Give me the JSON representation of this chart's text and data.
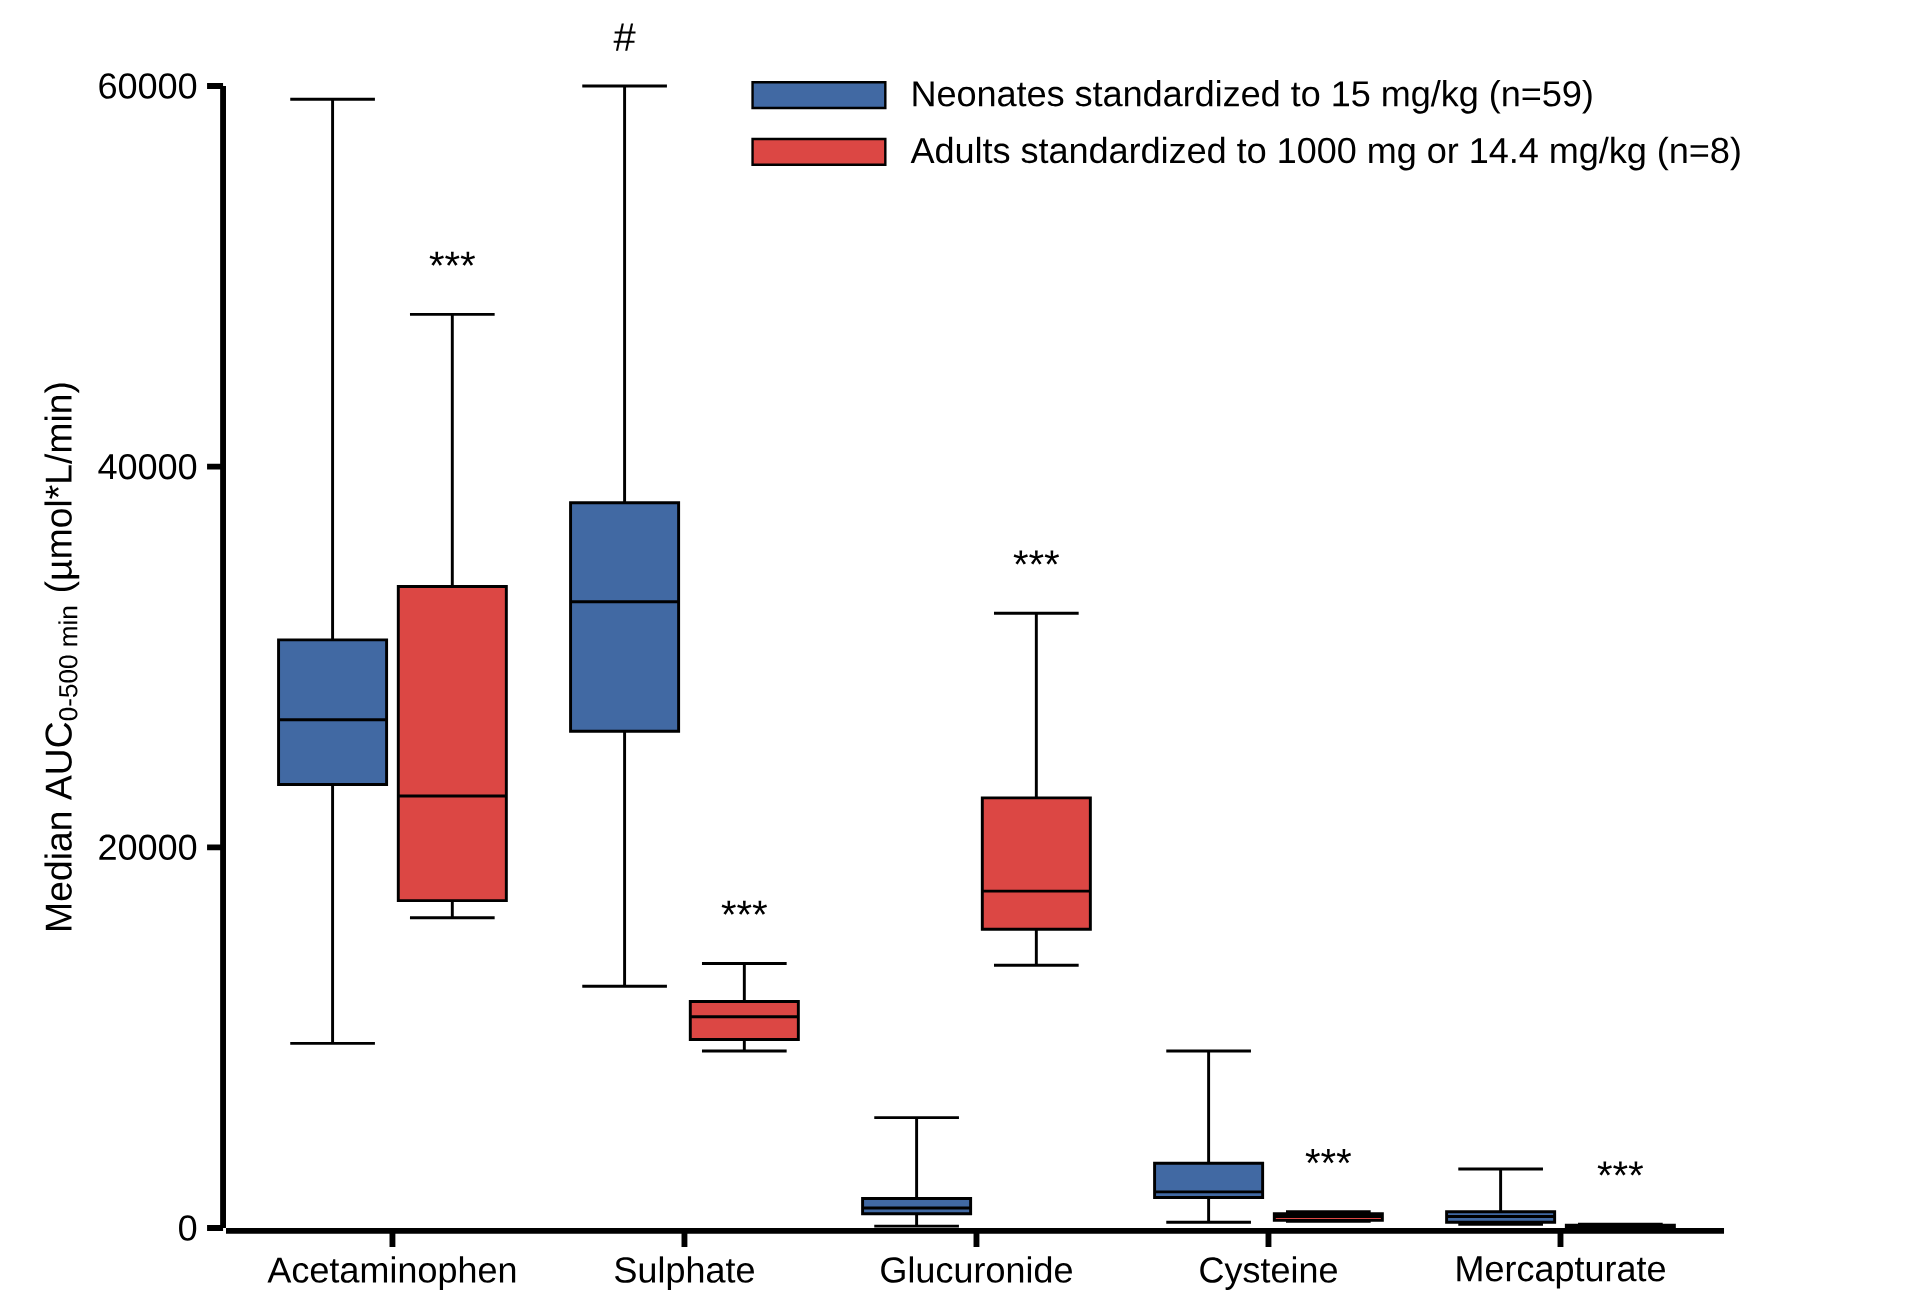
{
  "chart_data": {
    "type": "box",
    "ylabel": "Median AUC$_{0-500 min}$ (µmol*L/min)",
    "categories": [
      "Acetaminophen",
      "Sulphate",
      "Glucuronide",
      "Cysteine",
      "Mercapturate"
    ],
    "ylim": [
      0,
      60000
    ],
    "yticks": [
      0,
      20000,
      40000,
      60000
    ],
    "legend": "top right",
    "series": [
      {
        "name": "Neonates standardized to 15 mg/kg (n=59)",
        "color": "#4169a3",
        "boxes": [
          {
            "low": 9700,
            "q1": 23300,
            "median": 26700,
            "q3": 30900,
            "high": 59300
          },
          {
            "low": 12700,
            "q1": 26100,
            "median": 32900,
            "q3": 38100,
            "high": 60000
          },
          {
            "low": 100,
            "q1": 750,
            "median": 1050,
            "q3": 1550,
            "high": 5800
          },
          {
            "low": 300,
            "q1": 1600,
            "median": 1900,
            "q3": 3400,
            "high": 9300
          },
          {
            "low": 200,
            "q1": 300,
            "median": 600,
            "q3": 850,
            "high": 3100
          }
        ]
      },
      {
        "name": "Adults standardized to 1000 mg or 14.4 mg/kg (n=8)",
        "color": "#dc4744",
        "boxes": [
          {
            "low": 16300,
            "q1": 17200,
            "median": 22700,
            "q3": 33700,
            "high": 48000
          },
          {
            "low": 9300,
            "q1": 9900,
            "median": 11100,
            "q3": 11900,
            "high": 13900
          },
          {
            "low": 13800,
            "q1": 15700,
            "median": 17700,
            "q3": 22600,
            "high": 32300
          },
          {
            "low": 350,
            "q1": 400,
            "median": 600,
            "q3": 750,
            "high": 850
          },
          {
            "low": 0,
            "q1": 50,
            "median": 100,
            "q3": 150,
            "high": 200
          }
        ]
      }
    ],
    "annotations": [
      "***",
      "#",
      "***",
      "***",
      "***",
      "***"
    ]
  }
}
